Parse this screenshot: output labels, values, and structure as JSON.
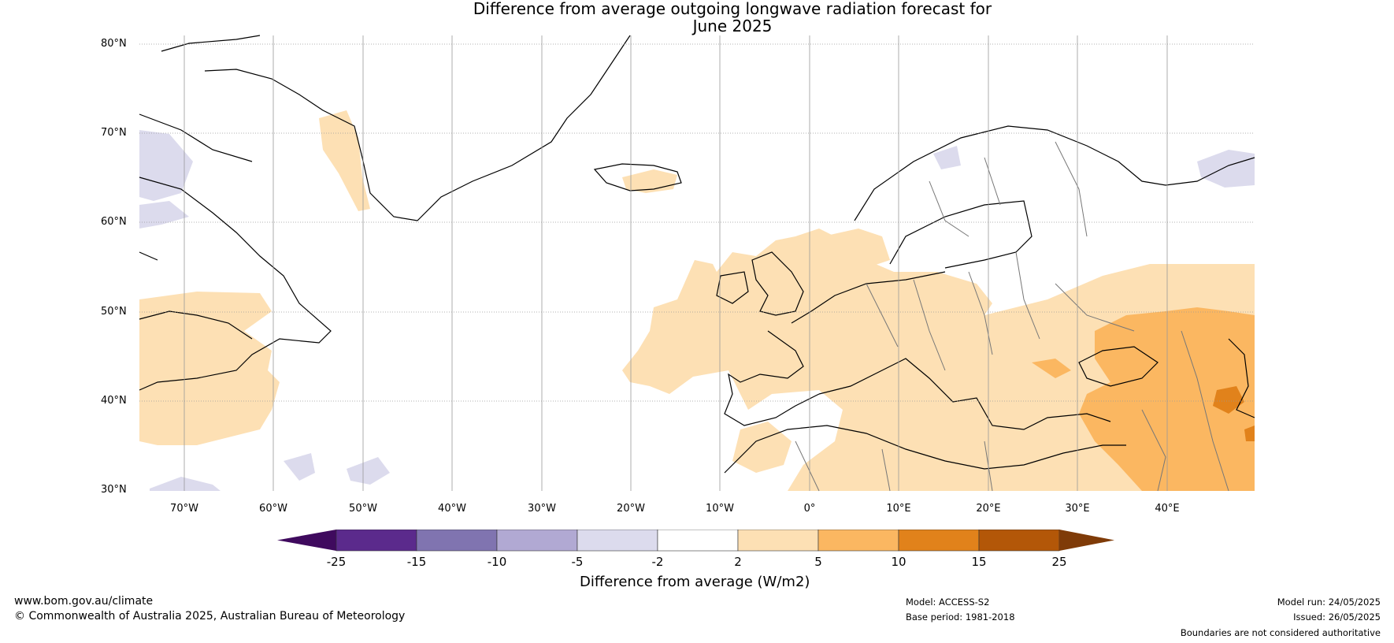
{
  "title": {
    "line1": "Difference from average outgoing longwave radiation forecast for",
    "line2": "June 2025"
  },
  "latitudes": [
    "80°N",
    "70°N",
    "60°N",
    "50°N",
    "40°N",
    "30°N"
  ],
  "longitudes": [
    "70°W",
    "60°W",
    "50°W",
    "40°W",
    "30°W",
    "20°W",
    "10°W",
    "0°",
    "10°E",
    "20°E",
    "30°E",
    "40°E"
  ],
  "colorbar": {
    "colors": [
      "#3f0a5e",
      "#5b2a8c",
      "#8074b0",
      "#b1a9d3",
      "#dcdbed",
      "#ffffff",
      "#fde0b4",
      "#fbb761",
      "#e1821b",
      "#b35708",
      "#7f3b08"
    ],
    "ticks": [
      "-25",
      "-15",
      "-10",
      "-5",
      "-2",
      "2",
      "5",
      "10",
      "15",
      "25"
    ],
    "label": "Difference from average (W/m2)"
  },
  "footer": {
    "website": "www.bom.gov.au/climate",
    "copyright": "© Commonwealth of Australia 2025, Australian Bureau of Meteorology",
    "model": "Model: ACCESS-S2",
    "base_period": "Base period: 1981-2018",
    "model_run": "Model run: 24/05/2025",
    "issued": "Issued: 26/05/2025",
    "disclaimer": "Boundaries are not considered authoritative"
  }
}
